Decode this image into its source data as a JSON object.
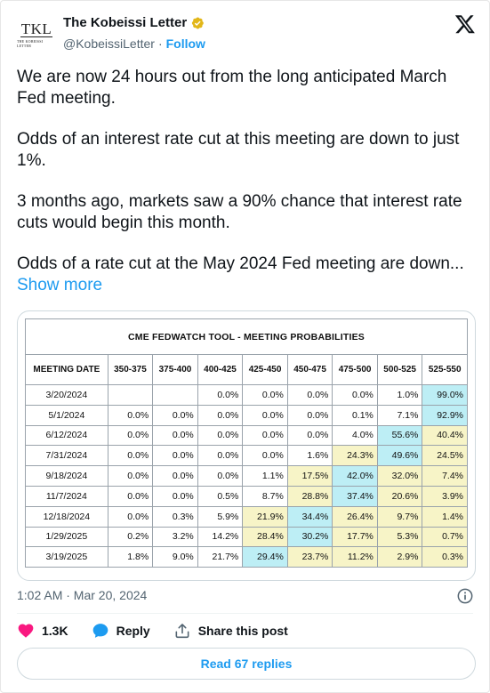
{
  "author": {
    "avatar_text": "TKL",
    "avatar_subtext": "THE KOBEISSI LETTER",
    "display_name": "The Kobeissi Letter",
    "handle": "@KobeissiLetter",
    "separator": "·",
    "follow_label": "Follow"
  },
  "tweet": {
    "paragraphs": [
      "We are now 24 hours out from the long anticipated March Fed meeting.",
      "Odds of an interest rate cut at this meeting are down to just 1%.",
      "3 months ago, markets saw a 90% chance that interest rate cuts would begin this month."
    ],
    "last_paragraph": "Odds of a rate cut at the May 2024 Fed meeting are down...",
    "show_more": "Show more"
  },
  "table": {
    "title": "CME FEDWATCH TOOL - MEETING PROBABILITIES",
    "headers": [
      "MEETING DATE",
      "350-375",
      "375-400",
      "400-425",
      "425-450",
      "450-475",
      "475-500",
      "500-525",
      "525-550"
    ],
    "rows": [
      {
        "date": "3/20/2024",
        "cells": [
          "",
          "",
          "0.0%",
          "0.0%",
          "0.0%",
          "0.0%",
          "1.0%",
          "99.0%"
        ],
        "shade": [
          "w",
          "w",
          "w",
          "w",
          "w",
          "w",
          "w",
          "b"
        ]
      },
      {
        "date": "5/1/2024",
        "cells": [
          "0.0%",
          "0.0%",
          "0.0%",
          "0.0%",
          "0.0%",
          "0.1%",
          "7.1%",
          "92.9%"
        ],
        "shade": [
          "w",
          "w",
          "w",
          "w",
          "w",
          "w",
          "w",
          "b"
        ]
      },
      {
        "date": "6/12/2024",
        "cells": [
          "0.0%",
          "0.0%",
          "0.0%",
          "0.0%",
          "0.0%",
          "4.0%",
          "55.6%",
          "40.4%"
        ],
        "shade": [
          "w",
          "w",
          "w",
          "w",
          "w",
          "w",
          "b",
          "y"
        ]
      },
      {
        "date": "7/31/2024",
        "cells": [
          "0.0%",
          "0.0%",
          "0.0%",
          "0.0%",
          "1.6%",
          "24.3%",
          "49.6%",
          "24.5%"
        ],
        "shade": [
          "w",
          "w",
          "w",
          "w",
          "w",
          "y",
          "b",
          "y"
        ]
      },
      {
        "date": "9/18/2024",
        "cells": [
          "0.0%",
          "0.0%",
          "0.0%",
          "1.1%",
          "17.5%",
          "42.0%",
          "32.0%",
          "7.4%"
        ],
        "shade": [
          "w",
          "w",
          "w",
          "w",
          "y",
          "b",
          "y",
          "y"
        ]
      },
      {
        "date": "11/7/2024",
        "cells": [
          "0.0%",
          "0.0%",
          "0.5%",
          "8.7%",
          "28.8%",
          "37.4%",
          "20.6%",
          "3.9%"
        ],
        "shade": [
          "w",
          "w",
          "w",
          "w",
          "y",
          "b",
          "y",
          "y"
        ]
      },
      {
        "date": "12/18/2024",
        "cells": [
          "0.0%",
          "0.3%",
          "5.9%",
          "21.9%",
          "34.4%",
          "26.4%",
          "9.7%",
          "1.4%"
        ],
        "shade": [
          "w",
          "w",
          "w",
          "y",
          "b",
          "y",
          "y",
          "y"
        ]
      },
      {
        "date": "1/29/2025",
        "cells": [
          "0.2%",
          "3.2%",
          "14.2%",
          "28.4%",
          "30.2%",
          "17.7%",
          "5.3%",
          "0.7%"
        ],
        "shade": [
          "w",
          "w",
          "w",
          "y",
          "b",
          "y",
          "y",
          "y"
        ]
      },
      {
        "date": "3/19/2025",
        "cells": [
          "1.8%",
          "9.0%",
          "21.7%",
          "29.4%",
          "23.7%",
          "11.2%",
          "2.9%",
          "0.3%"
        ],
        "shade": [
          "w",
          "w",
          "w",
          "b",
          "y",
          "y",
          "y",
          "y"
        ]
      }
    ]
  },
  "meta": {
    "timestamp": "1:02 AM · Mar 20, 2024"
  },
  "actions": {
    "like_count": "1.3K",
    "reply_label": "Reply",
    "share_label": "Share this post",
    "read_replies": "Read 67 replies"
  },
  "colors": {
    "accent": "#1d9bf0",
    "like": "#f91880",
    "cell_blue": "#bdeef5",
    "cell_yellow": "#f7f4c7"
  },
  "icons": [
    "verified-badge-icon",
    "x-logo-icon",
    "info-icon",
    "heart-icon",
    "reply-bubble-icon",
    "share-icon"
  ]
}
